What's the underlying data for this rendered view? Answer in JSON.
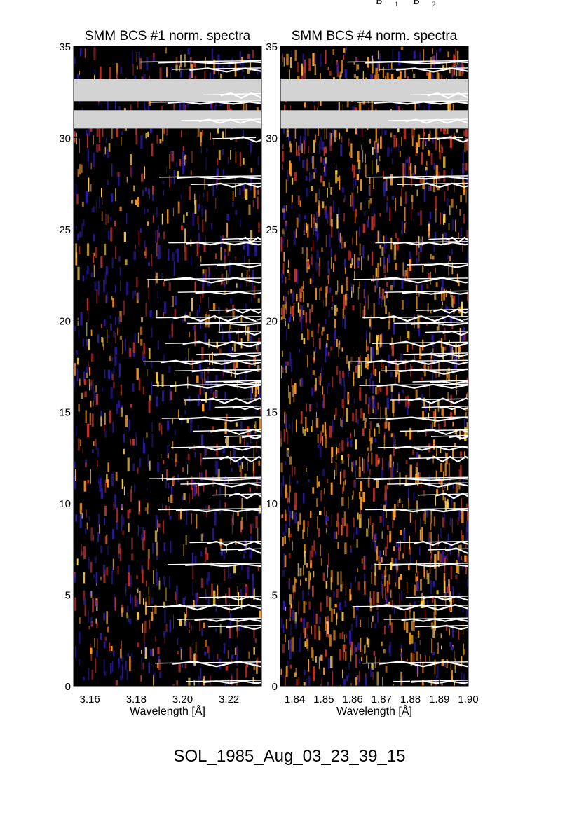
{
  "top_markers": [
    {
      "letter": "B",
      "sub": "1"
    },
    {
      "letter": "B",
      "sub": "2"
    }
  ],
  "footer_label": "SOL_1985_Aug_03_23_39_15",
  "colors": {
    "background_dark": "#000000",
    "blue": "#2a1aa0",
    "red": "#c0302a",
    "orange": "#ff9a20",
    "yellow": "#ffd24a",
    "gap": "#d3d3d3",
    "marks": "#ffffff"
  },
  "chart_data": [
    {
      "type": "heatmap",
      "title": "SMM BCS #1 norm. spectra",
      "xlabel": "Wavelength [Å]",
      "ylabel": "",
      "xlim": [
        3.153,
        3.234
      ],
      "ylim": [
        0,
        35
      ],
      "xticks": [
        "3.16",
        "3.18",
        "3.20",
        "3.22"
      ],
      "yticks": [
        "0",
        "5",
        "10",
        "15",
        "20",
        "25",
        "30",
        "35"
      ],
      "data_gaps_y": [
        [
          32.0,
          33.2
        ],
        [
          30.5,
          31.5
        ]
      ],
      "brightness": "low",
      "white_line_spectra_y": [
        34.1,
        33.7,
        32.3,
        31.9,
        30.9,
        29.9,
        27.8,
        27.4,
        24.4,
        24.2,
        23.0,
        22.2,
        21.5,
        20.5,
        20.1,
        19.8,
        19.3,
        18.7,
        18.1,
        17.7,
        17.2,
        16.6,
        16.4,
        15.6,
        15.2,
        14.6,
        13.9,
        13.6,
        13.0,
        12.4,
        11.3,
        11.0,
        10.4,
        9.6,
        7.8,
        7.4,
        6.6,
        4.8,
        4.3,
        3.6,
        3.2,
        1.2,
        0.2
      ]
    },
    {
      "type": "heatmap",
      "title": "SMM BCS #4 norm. spectra",
      "xlabel": "Wavelength [Å]",
      "ylabel": "",
      "xlim": [
        1.835,
        1.9
      ],
      "ylim": [
        0,
        35
      ],
      "xticks": [
        "1.84",
        "1.85",
        "1.86",
        "1.87",
        "1.88",
        "1.89",
        "1.90"
      ],
      "yticks": [
        "0",
        "5",
        "10",
        "15",
        "20",
        "25",
        "30",
        "35"
      ],
      "data_gaps_y": [
        [
          32.0,
          33.2
        ],
        [
          30.5,
          31.5
        ]
      ],
      "brightness": "high",
      "white_line_spectra_y": [
        34.1,
        33.7,
        32.3,
        31.9,
        30.9,
        29.9,
        27.8,
        27.4,
        24.4,
        24.2,
        23.0,
        22.2,
        21.5,
        20.5,
        20.1,
        19.8,
        19.3,
        18.7,
        18.1,
        17.7,
        17.2,
        16.6,
        16.4,
        15.6,
        15.2,
        14.6,
        13.9,
        13.6,
        13.0,
        12.4,
        11.3,
        11.0,
        10.4,
        9.6,
        7.8,
        7.4,
        6.6,
        4.8,
        4.3,
        3.6,
        3.2,
        1.2,
        0.2
      ]
    }
  ]
}
